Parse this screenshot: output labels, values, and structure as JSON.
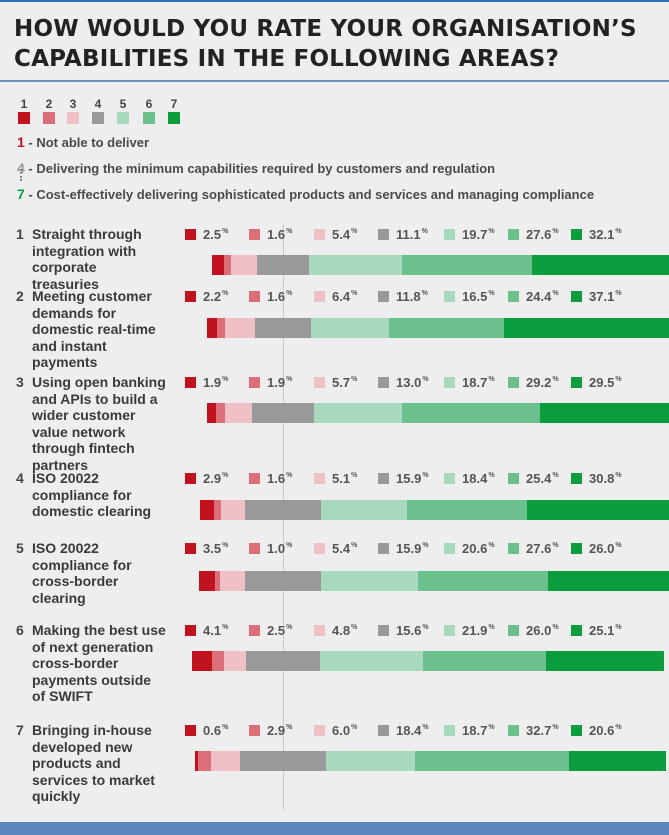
{
  "title": "HOW WOULD YOU RATE YOUR ORGANISATION’S CAPABILITIES IN THE FOLLOWING AREAS?",
  "scale": {
    "labels": [
      "1",
      "2",
      "3",
      "4",
      "5",
      "6",
      "7"
    ],
    "colors": [
      "#c1121f",
      "#dc6e7a",
      "#efc0c6",
      "#999999",
      "#a8d8bd",
      "#6cc08e",
      "#0a9c3d"
    ]
  },
  "legend": [
    {
      "num": "1",
      "text": "- Not able to deliver",
      "color": "#c1121f"
    },
    {
      "num": "4",
      "text": "- Delivering the minimum capabilities required by customers and regulation",
      "color": "#999999"
    },
    {
      "num": "7",
      "text": "- Cost-effectively delivering sophisticated products and services and managing compliance",
      "color": "#0a9c3d"
    }
  ],
  "value_suffix": "%",
  "chart_data": {
    "type": "bar",
    "stacked": true,
    "diverging": true,
    "center": "middle of rating 4",
    "categories": [
      "Straight through integration with corporate treasuries",
      "Meeting customer demands for domestic real-time and instant payments",
      "Using open banking and APIs to build a wider customer value network through fintech partners",
      "ISO 20022 compliance for domestic clearing",
      "ISO 20022 compliance for cross-border clearing",
      "Making the best use of next generation cross-border payments outside of SWIFT",
      "Bringing in-house developed new products and services to market quickly"
    ],
    "numbers": [
      "1",
      "2",
      "3",
      "4",
      "5",
      "6",
      "7"
    ],
    "series": [
      {
        "name": "1",
        "values": [
          2.5,
          2.2,
          1.9,
          2.9,
          3.5,
          4.1,
          0.6
        ]
      },
      {
        "name": "2",
        "values": [
          1.6,
          1.6,
          1.9,
          1.6,
          1.0,
          2.5,
          2.9
        ]
      },
      {
        "name": "3",
        "values": [
          5.4,
          6.4,
          5.7,
          5.1,
          5.4,
          4.8,
          6.0
        ]
      },
      {
        "name": "4",
        "values": [
          11.1,
          11.8,
          13.0,
          15.9,
          15.9,
          15.6,
          18.4
        ]
      },
      {
        "name": "5",
        "values": [
          19.7,
          16.5,
          18.7,
          18.4,
          20.6,
          21.9,
          18.7
        ]
      },
      {
        "name": "6",
        "values": [
          27.6,
          24.4,
          29.2,
          25.4,
          27.6,
          26.0,
          32.7
        ]
      },
      {
        "name": "7",
        "values": [
          32.1,
          37.1,
          29.5,
          30.8,
          26.0,
          25.1,
          20.6
        ]
      }
    ],
    "labels_display": [
      [
        "2.5",
        "1.6",
        "5.4",
        "11.1",
        "19.7",
        "27.6",
        "32.1"
      ],
      [
        "2.2",
        "1.6",
        "6.4",
        "11.8",
        "16.5",
        "24.4",
        "37.1"
      ],
      [
        "1.9",
        "1.9",
        "5.7",
        "13.0",
        "18.7",
        "29.2",
        "29.5"
      ],
      [
        "2.9",
        "1.6",
        "5.1",
        "15.9",
        "18.4",
        "25.4",
        "30.8"
      ],
      [
        "3.5",
        "1.0",
        "5.4",
        "15.9",
        "20.6",
        "27.6",
        "26.0"
      ],
      [
        "4.1",
        "2.5",
        "4.8",
        "15.6",
        "21.9",
        "26.0",
        "25.1"
      ],
      [
        "0.6",
        "2.9",
        "6.0",
        "18.4",
        "18.7",
        "32.7",
        "20.6"
      ]
    ],
    "unit": "%"
  }
}
